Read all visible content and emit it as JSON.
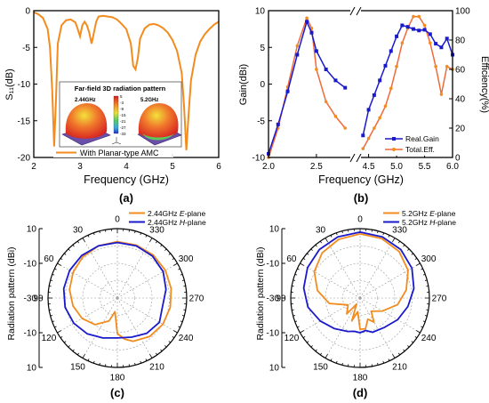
{
  "colors": {
    "orange": "#F28C1E",
    "blue": "#1A1ACC",
    "axis": "#000000"
  },
  "panels": {
    "a": "(a)",
    "b": "(b)",
    "c": "(c)",
    "d": "(d)"
  },
  "chart_data": [
    {
      "id": "a",
      "type": "line",
      "xlabel": "Frequency (GHz)",
      "ylabel": "S₁₁(dB)",
      "xlim": [
        2,
        6
      ],
      "ylim": [
        -20,
        0
      ],
      "xticks": [
        2,
        3,
        4,
        5,
        6
      ],
      "yticks": [
        0,
        -5,
        -10,
        -15,
        -20
      ],
      "legend": "bottom-left",
      "series": [
        {
          "name": "With Planar-type AMC",
          "x": [
            2.0,
            2.1,
            2.2,
            2.3,
            2.35,
            2.4,
            2.44,
            2.48,
            2.52,
            2.6,
            2.7,
            2.8,
            2.9,
            2.95,
            3.0,
            3.05,
            3.1,
            3.15,
            3.2,
            3.25,
            3.3,
            3.35,
            3.4,
            3.5,
            3.6,
            3.7,
            3.8,
            3.9,
            4.0,
            4.1,
            4.15,
            4.2,
            4.25,
            4.3,
            4.4,
            4.5,
            4.6,
            4.7,
            4.8,
            4.9,
            5.0,
            5.1,
            5.2,
            5.25,
            5.3,
            5.35,
            5.4,
            5.5,
            5.6,
            5.7,
            5.8,
            5.9,
            6.0
          ],
          "y": [
            -0.2,
            -0.5,
            -1.0,
            -2.5,
            -5.0,
            -11.0,
            -18.5,
            -12.0,
            -4.5,
            -2.0,
            -1.3,
            -1.2,
            -1.6,
            -2.5,
            -3.5,
            -2.0,
            -1.5,
            -2.0,
            -3.0,
            -4.5,
            -3.0,
            -1.5,
            -0.8,
            -0.7,
            -0.8,
            -0.9,
            -1.2,
            -1.8,
            -2.5,
            -4.5,
            -7.5,
            -8.0,
            -6.5,
            -3.8,
            -2.4,
            -1.9,
            -1.8,
            -2.0,
            -2.4,
            -3.0,
            -4.0,
            -5.5,
            -8.5,
            -13.0,
            -19.0,
            -14.0,
            -9.5,
            -6.0,
            -4.2,
            -3.2,
            -2.5,
            -1.9,
            -1.5
          ]
        }
      ],
      "inset": {
        "title": "Far-field 3D radiation pattern",
        "labels": [
          "2.44GHz",
          "5.2GHz"
        ],
        "colorbar_ticks": [
          "5",
          "-3",
          "-9",
          "-15",
          "-21",
          "-27",
          "-33"
        ]
      }
    },
    {
      "id": "b",
      "type": "line",
      "xlabel": "Frequency (GHz)",
      "ylabel": "Gain(dBi)",
      "y2label": "Efficiency(%)",
      "ylim": [
        -10,
        10
      ],
      "y2lim": [
        0,
        100
      ],
      "xticks": [
        "2.0",
        "2.5",
        "4.5",
        "5.0",
        "5.5",
        "6.0"
      ],
      "yticks": [
        10,
        5,
        0,
        -5,
        -10
      ],
      "y2ticks": [
        100,
        80,
        60,
        40,
        20,
        0
      ],
      "axis_break": true,
      "legend": "bottom-right",
      "series": [
        {
          "name": "Real.Gain",
          "axis": "left",
          "x": [
            2.0,
            2.1,
            2.2,
            2.3,
            2.4,
            2.45,
            2.5,
            2.6,
            2.7,
            2.8,
            4.4,
            4.5,
            4.6,
            4.7,
            4.8,
            4.9,
            5.0,
            5.1,
            5.2,
            5.3,
            5.4,
            5.5,
            5.6,
            5.7,
            5.8,
            5.9,
            6.0
          ],
          "y": [
            -9.5,
            -5.5,
            -1.0,
            4.0,
            8.5,
            7.0,
            4.5,
            2.0,
            0.5,
            -0.5,
            -7.0,
            -3.5,
            -1.5,
            0.5,
            2.5,
            4.5,
            6.5,
            8.0,
            7.8,
            7.5,
            7.3,
            7.4,
            6.8,
            5.5,
            5.0,
            6.2,
            4.0
          ]
        },
        {
          "name": "Total.Eff.",
          "axis": "right",
          "x": [
            2.0,
            2.1,
            2.2,
            2.3,
            2.4,
            2.45,
            2.5,
            2.6,
            2.7,
            2.8,
            4.4,
            4.5,
            4.6,
            4.7,
            4.8,
            4.9,
            5.0,
            5.1,
            5.2,
            5.3,
            5.4,
            5.5,
            5.6,
            5.7,
            5.8,
            5.9,
            6.0
          ],
          "y": [
            0,
            20,
            48,
            76,
            95,
            88,
            60,
            38,
            28,
            20,
            6,
            13,
            20,
            27,
            35,
            47,
            62,
            78,
            88,
            96,
            96,
            90,
            78,
            62,
            43,
            62,
            60
          ]
        }
      ]
    },
    {
      "id": "c",
      "type": "polar",
      "ylabel": "Radiation pattern (dBi)",
      "rlim": [
        -30,
        10
      ],
      "rticks": [
        10,
        -10,
        -30,
        -10,
        10
      ],
      "angle_labels": [
        "0",
        "30",
        "60",
        "90",
        "120",
        "150",
        "180",
        "210",
        "240",
        "270",
        "300",
        "330"
      ],
      "legend": "top-right",
      "series": [
        {
          "name": "2.44GHz E-plane",
          "name_main": "2.44GHz ",
          "name_italic": "E",
          "name_tail": "-plane",
          "angles": [
            0,
            20,
            40,
            60,
            80,
            100,
            120,
            140,
            160,
            170,
            180,
            190,
            200,
            220,
            240,
            260,
            280,
            300,
            320,
            340
          ],
          "r": [
            2.5,
            2.0,
            1.0,
            -0.5,
            -2.0,
            -4.0,
            -6.5,
            -10.0,
            -16.0,
            -22.0,
            -9.5,
            -6.0,
            -3.5,
            -1.0,
            0.3,
            1.0,
            1.5,
            2.0,
            2.3,
            2.4
          ]
        },
        {
          "name": "2.44GHz H-plane",
          "name_main": "2.44GHz ",
          "name_italic": "H",
          "name_tail": "-plane",
          "angles": [
            0,
            20,
            40,
            60,
            80,
            100,
            120,
            140,
            160,
            180,
            200,
            220,
            240,
            260,
            280,
            300,
            320,
            340
          ],
          "r": [
            2.0,
            2.0,
            2.0,
            1.8,
            1.4,
            0.6,
            -1.0,
            -3.0,
            -5.5,
            -7.0,
            -6.0,
            -3.5,
            -2.0,
            -3.5,
            -1.5,
            0.5,
            1.5,
            2.0
          ]
        }
      ]
    },
    {
      "id": "d",
      "type": "polar",
      "ylabel": "Radiation pattern (dBi)",
      "rlim": [
        -30,
        10
      ],
      "rticks": [
        10,
        -10,
        -30,
        -10,
        10
      ],
      "angle_labels": [
        "0",
        "30",
        "60",
        "90",
        "120",
        "150",
        "180",
        "210",
        "240",
        "270",
        "300",
        "330"
      ],
      "legend": "top-right",
      "series": [
        {
          "name": "5.2GHz E-plane",
          "name_main": "5.2GHz ",
          "name_italic": "E",
          "name_tail": "-plane",
          "angles": [
            0,
            20,
            40,
            60,
            80,
            100,
            120,
            140,
            150,
            160,
            170,
            180,
            190,
            200,
            210,
            220,
            240,
            260,
            280,
            300,
            320,
            340
          ],
          "r": [
            7.0,
            6.0,
            4.0,
            0.5,
            -5.0,
            -12.0,
            -22.0,
            -18.0,
            -26.0,
            -16.0,
            -22.0,
            -12.0,
            -12.0,
            -17.0,
            -14.0,
            -20.0,
            -15.0,
            -8.0,
            -3.0,
            2.0,
            5.0,
            6.5
          ]
        },
        {
          "name": "5.2GHz H-plane",
          "name_main": "5.2GHz ",
          "name_italic": "H",
          "name_tail": "-plane",
          "angles": [
            0,
            20,
            40,
            60,
            80,
            100,
            120,
            140,
            160,
            170,
            180,
            190,
            200,
            220,
            240,
            260,
            280,
            300,
            320,
            340
          ],
          "r": [
            8.0,
            7.5,
            6.5,
            5.0,
            3.0,
            0.5,
            -3.5,
            -7.0,
            -9.5,
            -10.5,
            -10.0,
            -11.0,
            -9.0,
            -8.0,
            -5.0,
            -2.0,
            1.5,
            4.5,
            6.5,
            7.5
          ]
        }
      ]
    }
  ]
}
